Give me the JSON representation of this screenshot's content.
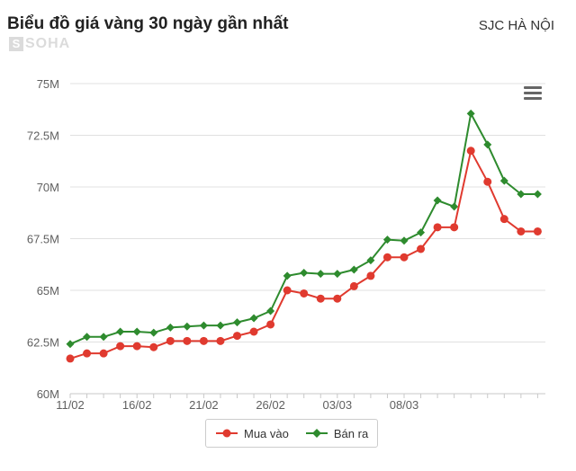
{
  "header": {
    "title": "Biểu đồ giá vàng 30 ngày gần nhất",
    "source": "SJC HÀ NỘI"
  },
  "watermark": {
    "box": "S",
    "text": "SOHA"
  },
  "colors": {
    "buy": "#e03a2f",
    "sell": "#2e8b2e",
    "grid": "#e0e0e0",
    "axis_text": "#606060"
  },
  "menu": {
    "icon": "hamburger-menu-icon"
  },
  "chart_data": {
    "type": "line",
    "ylim": [
      60,
      75
    ],
    "yticks": [
      60,
      62.5,
      65,
      67.5,
      70,
      72.5,
      75
    ],
    "ytick_labels": [
      "60M",
      "62.5M",
      "65M",
      "67.5M",
      "70M",
      "72.5M",
      "75M"
    ],
    "x_labels": [
      {
        "index": 0,
        "label": "11/02"
      },
      {
        "index": 4,
        "label": "16/02"
      },
      {
        "index": 8,
        "label": "21/02"
      },
      {
        "index": 12,
        "label": "26/02"
      },
      {
        "index": 16,
        "label": "03/03"
      },
      {
        "index": 20,
        "label": "08/03"
      }
    ],
    "grid": true,
    "legend_position": "bottom-center",
    "series": [
      {
        "name": "Mua vào",
        "marker": "circle",
        "color": "#e03a2f",
        "values": [
          61.7,
          61.95,
          61.95,
          62.3,
          62.3,
          62.25,
          62.55,
          62.55,
          62.55,
          62.55,
          62.8,
          63.0,
          63.35,
          65.0,
          64.85,
          64.6,
          64.6,
          65.2,
          65.7,
          66.6,
          66.6,
          67.0,
          68.05,
          68.05,
          71.75,
          70.25,
          68.45,
          67.85,
          67.85
        ]
      },
      {
        "name": "Bán ra",
        "marker": "diamond",
        "color": "#2e8b2e",
        "values": [
          62.4,
          62.75,
          62.75,
          63.0,
          63.0,
          62.95,
          63.2,
          63.25,
          63.3,
          63.3,
          63.45,
          63.65,
          64.0,
          65.7,
          65.85,
          65.8,
          65.8,
          66.0,
          66.45,
          67.45,
          67.4,
          67.8,
          69.35,
          69.05,
          73.55,
          72.05,
          70.3,
          69.65,
          69.65
        ]
      }
    ]
  }
}
